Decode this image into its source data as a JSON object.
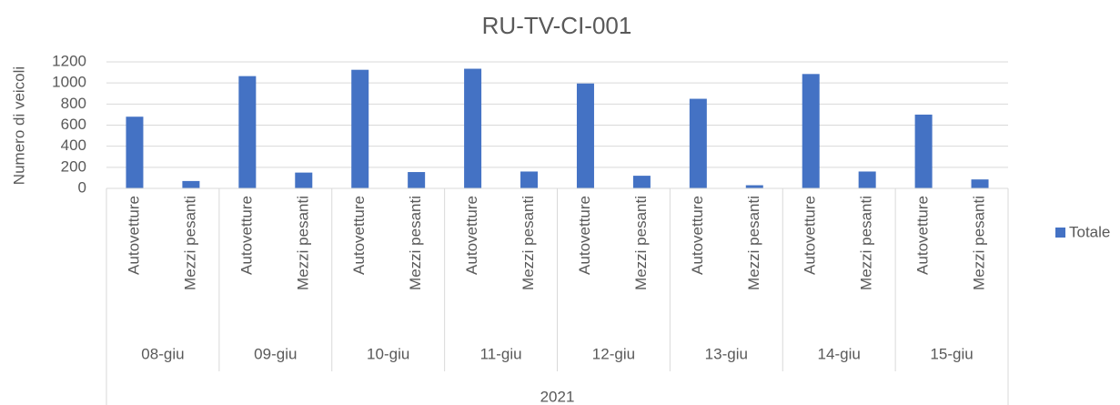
{
  "chart_data": {
    "type": "bar",
    "title": "RU-TV-CI-001",
    "y_label": "Numero di veicoli",
    "categories": [
      "Autovetture",
      "Mezzi pesanti",
      "Autovetture",
      "Mezzi pesanti",
      "Autovetture",
      "Mezzi pesanti",
      "Autovetture",
      "Mezzi pesanti",
      "Autovetture",
      "Mezzi pesanti",
      "Autovetture",
      "Mezzi pesanti",
      "Autovetture",
      "Mezzi pesanti",
      "Autovetture",
      "Mezzi pesanti"
    ],
    "groups": [
      "08-giu",
      "09-giu",
      "10-giu",
      "11-giu",
      "12-giu",
      "13-giu",
      "14-giu",
      "15-giu"
    ],
    "outer_category": "2021",
    "series": [
      {
        "name": "Totale",
        "color": "#4472c4",
        "values": [
          680,
          70,
          1065,
          150,
          1125,
          155,
          1135,
          160,
          995,
          120,
          850,
          30,
          1085,
          160,
          700,
          85
        ]
      }
    ],
    "ylim": [
      0,
      1200
    ],
    "yticks": [
      0,
      200,
      400,
      600,
      800,
      1000,
      1200
    ],
    "grid": true,
    "legend": "right"
  }
}
